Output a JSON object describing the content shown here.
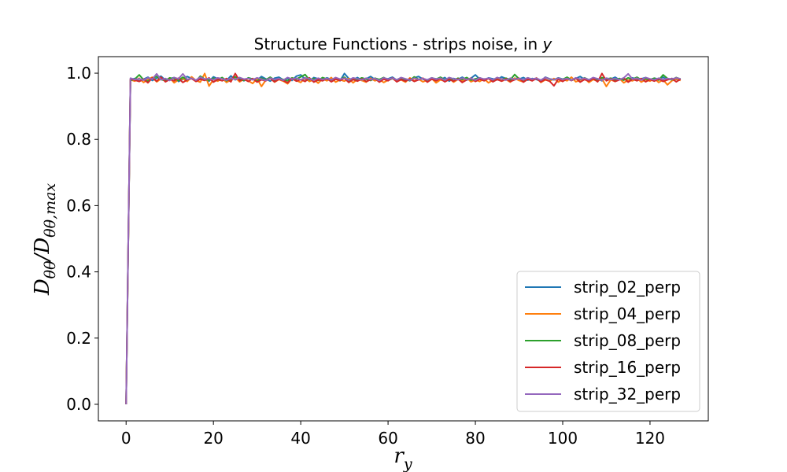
{
  "chart_data": {
    "type": "line",
    "title": "Structure Functions - strips noise, in y",
    "xlabel": "r_y",
    "ylabel": "D_θθ/D_θθ,max",
    "xlim": [
      -6.35,
      133.35
    ],
    "ylim": [
      -0.05,
      1.05
    ],
    "xticks": [
      0,
      20,
      40,
      60,
      80,
      100,
      120
    ],
    "yticks": [
      0.0,
      0.2,
      0.4,
      0.6,
      0.8,
      1.0
    ],
    "grid": false,
    "legend_position": "lower-right",
    "x": [
      0,
      1,
      2,
      3,
      4,
      5,
      6,
      7,
      8,
      9,
      10,
      11,
      12,
      13,
      14,
      15,
      16,
      17,
      18,
      19,
      20,
      21,
      22,
      23,
      24,
      25,
      26,
      27,
      28,
      29,
      30,
      31,
      32,
      33,
      34,
      35,
      36,
      37,
      38,
      39,
      40,
      41,
      42,
      43,
      44,
      45,
      46,
      47,
      48,
      49,
      50,
      51,
      52,
      53,
      54,
      55,
      56,
      57,
      58,
      59,
      60,
      61,
      62,
      63,
      64,
      65,
      66,
      67,
      68,
      69,
      70,
      71,
      72,
      73,
      74,
      75,
      76,
      77,
      78,
      79,
      80,
      81,
      82,
      83,
      84,
      85,
      86,
      87,
      88,
      89,
      90,
      91,
      92,
      93,
      94,
      95,
      96,
      97,
      98,
      99,
      100,
      101,
      102,
      103,
      104,
      105,
      106,
      107,
      108,
      109,
      110,
      111,
      112,
      113,
      114,
      115,
      116,
      117,
      118,
      119,
      120,
      121,
      122,
      123,
      124,
      125,
      126,
      127
    ],
    "series": [
      {
        "name": "strip_02_perp",
        "color": "#1f77b4",
        "values": [
          0.0,
          0.981,
          0.984,
          0.976,
          0.982,
          0.988,
          0.978,
          0.985,
          0.991,
          0.979,
          0.983,
          0.987,
          0.975,
          0.982,
          0.99,
          0.984,
          0.978,
          0.986,
          0.981,
          0.976,
          0.989,
          0.983,
          0.985,
          0.978,
          0.992,
          0.98,
          0.984,
          0.977,
          0.986,
          0.982,
          0.979,
          0.99,
          0.983,
          0.976,
          0.985,
          0.988,
          0.98,
          0.984,
          0.978,
          0.991,
          0.995,
          0.982,
          0.976,
          0.987,
          0.983,
          0.979,
          0.986,
          0.981,
          0.985,
          0.977,
          0.999,
          0.984,
          0.98,
          0.987,
          0.978,
          0.983,
          0.99,
          0.981,
          0.976,
          0.985,
          0.983,
          0.988,
          0.979,
          0.984,
          0.981,
          0.977,
          0.986,
          0.99,
          0.982,
          0.978,
          0.985,
          0.983,
          0.98,
          0.987,
          0.976,
          0.984,
          0.981,
          0.988,
          0.979,
          0.985,
          0.995,
          0.982,
          0.978,
          0.986,
          0.983,
          0.98,
          0.989,
          0.984,
          0.977,
          0.985,
          0.982,
          0.987,
          0.979,
          0.984,
          0.981,
          0.976,
          0.988,
          0.983,
          0.98,
          0.986,
          0.982,
          0.985,
          0.978,
          0.984,
          0.99,
          0.981,
          0.979,
          0.986,
          0.983,
          0.977,
          0.985,
          0.982,
          0.988,
          0.98,
          0.984,
          0.978,
          0.986,
          0.981,
          0.983,
          0.987,
          0.979,
          0.985,
          0.982,
          0.988,
          0.98,
          0.984,
          0.981,
          0.983
        ]
      },
      {
        "name": "strip_04_perp",
        "color": "#ff7f0e",
        "values": [
          0.0,
          0.98,
          0.976,
          0.985,
          0.972,
          0.981,
          0.988,
          0.974,
          0.983,
          0.977,
          0.986,
          0.971,
          0.98,
          0.984,
          0.975,
          0.989,
          0.978,
          0.973,
          0.999,
          0.961,
          0.981,
          0.976,
          0.985,
          0.972,
          0.98,
          0.987,
          0.974,
          0.982,
          0.977,
          0.969,
          0.984,
          0.96,
          0.979,
          0.985,
          0.973,
          0.981,
          0.976,
          0.968,
          0.984,
          0.978,
          0.972,
          0.986,
          0.975,
          0.981,
          0.97,
          0.983,
          0.977,
          0.987,
          0.973,
          0.98,
          0.976,
          0.984,
          0.971,
          0.982,
          0.978,
          0.973,
          0.985,
          0.977,
          0.981,
          0.972,
          0.979,
          0.984,
          0.975,
          0.98,
          0.973,
          0.986,
          0.977,
          0.982,
          0.974,
          0.979,
          0.984,
          0.971,
          0.98,
          0.976,
          0.985,
          0.973,
          0.981,
          0.977,
          0.986,
          0.974,
          0.98,
          0.975,
          0.983,
          0.971,
          0.979,
          0.984,
          0.976,
          0.981,
          0.973,
          0.985,
          0.978,
          0.974,
          0.982,
          0.977,
          0.986,
          0.972,
          0.98,
          0.976,
          0.984,
          0.973,
          0.981,
          0.977,
          0.988,
          0.974,
          0.979,
          0.985,
          0.972,
          0.981,
          0.976,
          0.983,
          0.96,
          0.98,
          0.975,
          0.984,
          0.971,
          0.979,
          0.977,
          0.985,
          0.973,
          0.981,
          0.976,
          0.984,
          0.972,
          0.98,
          0.965,
          0.977,
          0.983,
          0.978
        ]
      },
      {
        "name": "strip_08_perp",
        "color": "#2ca02c",
        "values": [
          0.0,
          0.978,
          0.982,
          0.995,
          0.98,
          0.976,
          0.985,
          0.99,
          0.981,
          0.977,
          0.986,
          0.983,
          0.978,
          0.988,
          0.98,
          0.984,
          0.976,
          0.991,
          0.982,
          0.979,
          0.985,
          0.98,
          0.987,
          0.977,
          0.983,
          0.989,
          0.981,
          0.978,
          0.986,
          0.982,
          0.976,
          0.985,
          0.98,
          0.988,
          0.979,
          0.984,
          0.981,
          0.977,
          0.986,
          0.982,
          0.989,
          0.996,
          0.98,
          0.984,
          0.978,
          0.987,
          0.982,
          0.979,
          0.985,
          0.981,
          0.988,
          0.977,
          0.984,
          0.98,
          0.986,
          0.982,
          0.978,
          0.985,
          0.981,
          0.987,
          0.979,
          0.984,
          0.98,
          0.986,
          0.982,
          0.978,
          0.989,
          0.981,
          0.984,
          0.979,
          0.986,
          0.982,
          0.988,
          0.98,
          0.984,
          0.977,
          0.985,
          0.981,
          0.987,
          0.979,
          0.983,
          0.986,
          0.98,
          0.984,
          0.978,
          0.987,
          0.982,
          0.985,
          0.98,
          0.996,
          0.983,
          0.979,
          0.986,
          0.981,
          0.984,
          0.978,
          0.987,
          0.982,
          0.98,
          0.985,
          0.981,
          0.988,
          0.979,
          0.984,
          0.981,
          0.986,
          0.98,
          0.983,
          0.978,
          0.987,
          0.982,
          0.985,
          0.98,
          0.984,
          0.979,
          0.986,
          0.982,
          0.988,
          0.98,
          0.983,
          0.981,
          0.985,
          0.979,
          0.995,
          0.984,
          0.98,
          0.987,
          0.982
        ]
      },
      {
        "name": "strip_16_perp",
        "color": "#d62728",
        "values": [
          0.0,
          0.983,
          0.979,
          0.975,
          0.982,
          0.971,
          0.986,
          0.976,
          0.988,
          0.974,
          0.981,
          0.977,
          0.985,
          0.972,
          0.98,
          0.984,
          0.975,
          0.982,
          0.978,
          0.986,
          0.973,
          0.981,
          0.977,
          0.984,
          0.974,
          0.999,
          0.977,
          0.982,
          0.975,
          0.984,
          0.973,
          0.98,
          0.977,
          0.985,
          0.974,
          0.982,
          0.978,
          0.971,
          0.984,
          0.976,
          0.981,
          0.975,
          0.986,
          0.973,
          0.98,
          0.977,
          0.984,
          0.974,
          0.982,
          0.978,
          0.985,
          0.972,
          0.981,
          0.976,
          0.983,
          0.975,
          0.98,
          0.984,
          0.973,
          0.982,
          0.977,
          0.986,
          0.974,
          0.981,
          0.976,
          0.983,
          0.975,
          0.98,
          0.985,
          0.973,
          0.982,
          0.977,
          0.984,
          0.974,
          0.981,
          0.976,
          0.983,
          0.972,
          0.98,
          0.985,
          0.975,
          0.982,
          0.977,
          0.984,
          0.974,
          0.981,
          0.976,
          0.983,
          0.975,
          0.98,
          0.985,
          0.973,
          0.982,
          0.977,
          0.984,
          0.974,
          0.981,
          0.976,
          0.962,
          0.982,
          0.975,
          0.983,
          0.978,
          0.985,
          0.973,
          0.981,
          0.976,
          0.984,
          0.974,
          0.999,
          0.977,
          0.983,
          0.975,
          0.98,
          0.985,
          0.973,
          0.982,
          0.977,
          0.984,
          0.974,
          0.981,
          0.976,
          0.983,
          0.975,
          0.98,
          0.984,
          0.974,
          0.982
        ]
      },
      {
        "name": "strip_32_perp",
        "color": "#9467bd",
        "values": [
          0.0,
          0.985,
          0.981,
          0.983,
          0.979,
          0.986,
          0.982,
          0.998,
          0.98,
          0.984,
          0.978,
          0.987,
          0.983,
          0.998,
          0.981,
          0.985,
          0.979,
          0.988,
          0.982,
          0.984,
          0.98,
          0.986,
          0.983,
          0.979,
          0.985,
          0.981,
          0.987,
          0.982,
          0.984,
          0.98,
          0.986,
          0.982,
          0.978,
          0.985,
          0.981,
          0.984,
          0.979,
          0.987,
          0.982,
          0.985,
          0.98,
          0.986,
          0.983,
          0.979,
          0.985,
          0.981,
          0.984,
          0.98,
          0.987,
          0.982,
          0.985,
          0.979,
          0.986,
          0.983,
          0.98,
          0.985,
          0.981,
          0.984,
          0.978,
          0.986,
          0.982,
          0.985,
          0.98,
          0.987,
          0.983,
          0.979,
          0.985,
          0.981,
          0.984,
          0.98,
          0.986,
          0.982,
          0.985,
          0.979,
          0.987,
          0.983,
          0.98,
          0.985,
          0.981,
          0.984,
          0.979,
          0.986,
          0.982,
          0.985,
          0.98,
          0.987,
          0.983,
          0.979,
          0.985,
          0.981,
          0.984,
          0.98,
          0.986,
          0.982,
          0.985,
          0.979,
          0.987,
          0.983,
          0.98,
          0.985,
          0.981,
          0.984,
          0.979,
          0.986,
          0.982,
          0.985,
          0.98,
          0.987,
          0.983,
          0.979,
          0.985,
          0.981,
          0.984,
          0.98,
          0.986,
          0.998,
          0.982,
          0.985,
          0.979,
          0.987,
          0.983,
          0.98,
          0.985,
          0.981,
          0.984,
          0.982,
          0.986,
          0.983
        ]
      }
    ]
  }
}
